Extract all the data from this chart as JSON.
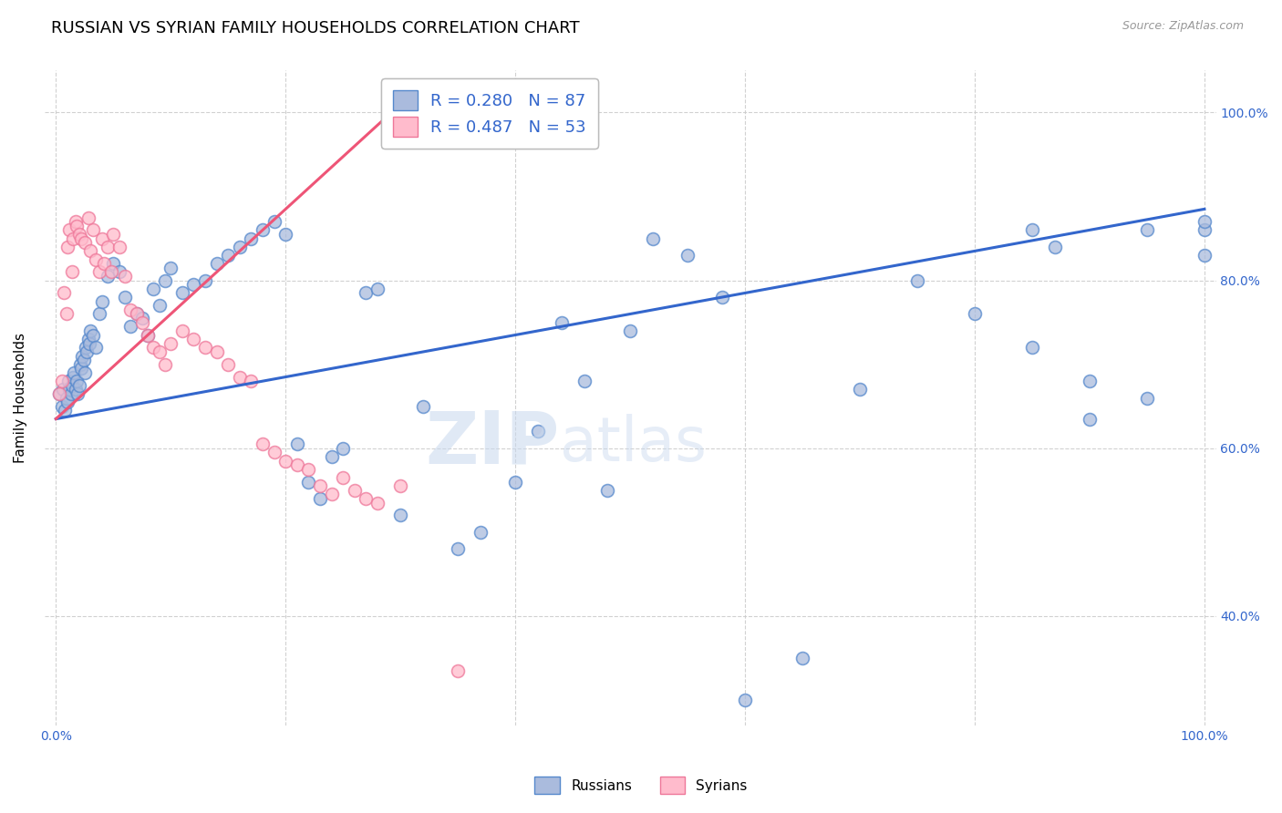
{
  "title": "RUSSIAN VS SYRIAN FAMILY HOUSEHOLDS CORRELATION CHART",
  "source": "Source: ZipAtlas.com",
  "ylabel": "Family Households",
  "legend_russians": "Russians",
  "legend_syrians": "Syrians",
  "r_russian": 0.28,
  "n_russian": 87,
  "r_syrian": 0.487,
  "n_syrian": 53,
  "blue_fill": "#AABBDD",
  "blue_edge": "#5588CC",
  "pink_fill": "#FFBBCC",
  "pink_edge": "#EE7799",
  "blue_line_color": "#3366CC",
  "pink_line_color": "#EE5577",
  "axis_label_color": "#3366CC",
  "grid_color": "#CCCCCC",
  "watermark_color": "#C8D8EE",
  "ylim": [
    27,
    105
  ],
  "xlim": [
    -1,
    101
  ],
  "yticks": [
    40,
    60,
    80,
    100
  ],
  "ytick_labels": [
    "40.0%",
    "60.0%",
    "80.0%",
    "100.0%"
  ],
  "rus_trend_x": [
    0,
    100
  ],
  "rus_trend_y": [
    63.5,
    88.5
  ],
  "syr_trend_x": [
    0,
    30
  ],
  "syr_trend_y": [
    63.5,
    101.0
  ],
  "rus_x": [
    0.3,
    0.5,
    0.6,
    0.8,
    0.9,
    1.0,
    1.1,
    1.2,
    1.3,
    1.4,
    1.5,
    1.6,
    1.7,
    1.8,
    1.9,
    2.0,
    2.1,
    2.2,
    2.3,
    2.4,
    2.5,
    2.6,
    2.7,
    2.8,
    2.9,
    3.0,
    3.2,
    3.5,
    3.8,
    4.0,
    4.5,
    5.0,
    5.5,
    6.0,
    6.5,
    7.0,
    7.5,
    8.0,
    8.5,
    9.0,
    9.5,
    10.0,
    11.0,
    12.0,
    13.0,
    14.0,
    15.0,
    16.0,
    17.0,
    18.0,
    19.0,
    20.0,
    21.0,
    22.0,
    23.0,
    24.0,
    25.0,
    27.0,
    28.0,
    30.0,
    32.0,
    35.0,
    37.0,
    40.0,
    42.0,
    44.0,
    46.0,
    48.0,
    50.0,
    52.0,
    55.0,
    58.0,
    60.0,
    65.0,
    70.0,
    75.0,
    80.0,
    85.0,
    90.0,
    95.0,
    100.0,
    100.0,
    100.0,
    90.0,
    85.0,
    87.0,
    95.0
  ],
  "rus_y": [
    66.5,
    65.0,
    67.0,
    64.5,
    66.0,
    65.5,
    68.0,
    67.0,
    66.5,
    67.5,
    68.5,
    69.0,
    67.0,
    68.0,
    66.5,
    67.5,
    70.0,
    69.5,
    71.0,
    70.5,
    69.0,
    72.0,
    71.5,
    73.0,
    72.5,
    74.0,
    73.5,
    72.0,
    76.0,
    77.5,
    80.5,
    82.0,
    81.0,
    78.0,
    74.5,
    76.0,
    75.5,
    73.5,
    79.0,
    77.0,
    80.0,
    81.5,
    78.5,
    79.5,
    80.0,
    82.0,
    83.0,
    84.0,
    85.0,
    86.0,
    87.0,
    85.5,
    60.5,
    56.0,
    54.0,
    59.0,
    60.0,
    78.5,
    79.0,
    52.0,
    65.0,
    48.0,
    50.0,
    56.0,
    62.0,
    75.0,
    68.0,
    55.0,
    74.0,
    85.0,
    83.0,
    78.0,
    30.0,
    35.0,
    67.0,
    80.0,
    76.0,
    72.0,
    68.0,
    86.0,
    83.0,
    86.0,
    87.0,
    63.5,
    86.0,
    84.0,
    66.0
  ],
  "syr_x": [
    0.3,
    0.5,
    0.7,
    0.9,
    1.0,
    1.2,
    1.4,
    1.5,
    1.7,
    1.8,
    2.0,
    2.2,
    2.5,
    2.8,
    3.0,
    3.2,
    3.5,
    3.8,
    4.0,
    4.2,
    4.5,
    4.8,
    5.0,
    5.5,
    6.0,
    6.5,
    7.0,
    7.5,
    8.0,
    8.5,
    9.0,
    9.5,
    10.0,
    11.0,
    12.0,
    13.0,
    14.0,
    15.0,
    16.0,
    17.0,
    18.0,
    19.0,
    20.0,
    21.0,
    22.0,
    23.0,
    24.0,
    25.0,
    26.0,
    27.0,
    28.0,
    30.0,
    35.0
  ],
  "syr_y": [
    66.5,
    68.0,
    78.5,
    76.0,
    84.0,
    86.0,
    81.0,
    85.0,
    87.0,
    86.5,
    85.5,
    85.0,
    84.5,
    87.5,
    83.5,
    86.0,
    82.5,
    81.0,
    85.0,
    82.0,
    84.0,
    81.0,
    85.5,
    84.0,
    80.5,
    76.5,
    76.0,
    75.0,
    73.5,
    72.0,
    71.5,
    70.0,
    72.5,
    74.0,
    73.0,
    72.0,
    71.5,
    70.0,
    68.5,
    68.0,
    60.5,
    59.5,
    58.5,
    58.0,
    57.5,
    55.5,
    54.5,
    56.5,
    55.0,
    54.0,
    53.5,
    55.5,
    33.5
  ]
}
